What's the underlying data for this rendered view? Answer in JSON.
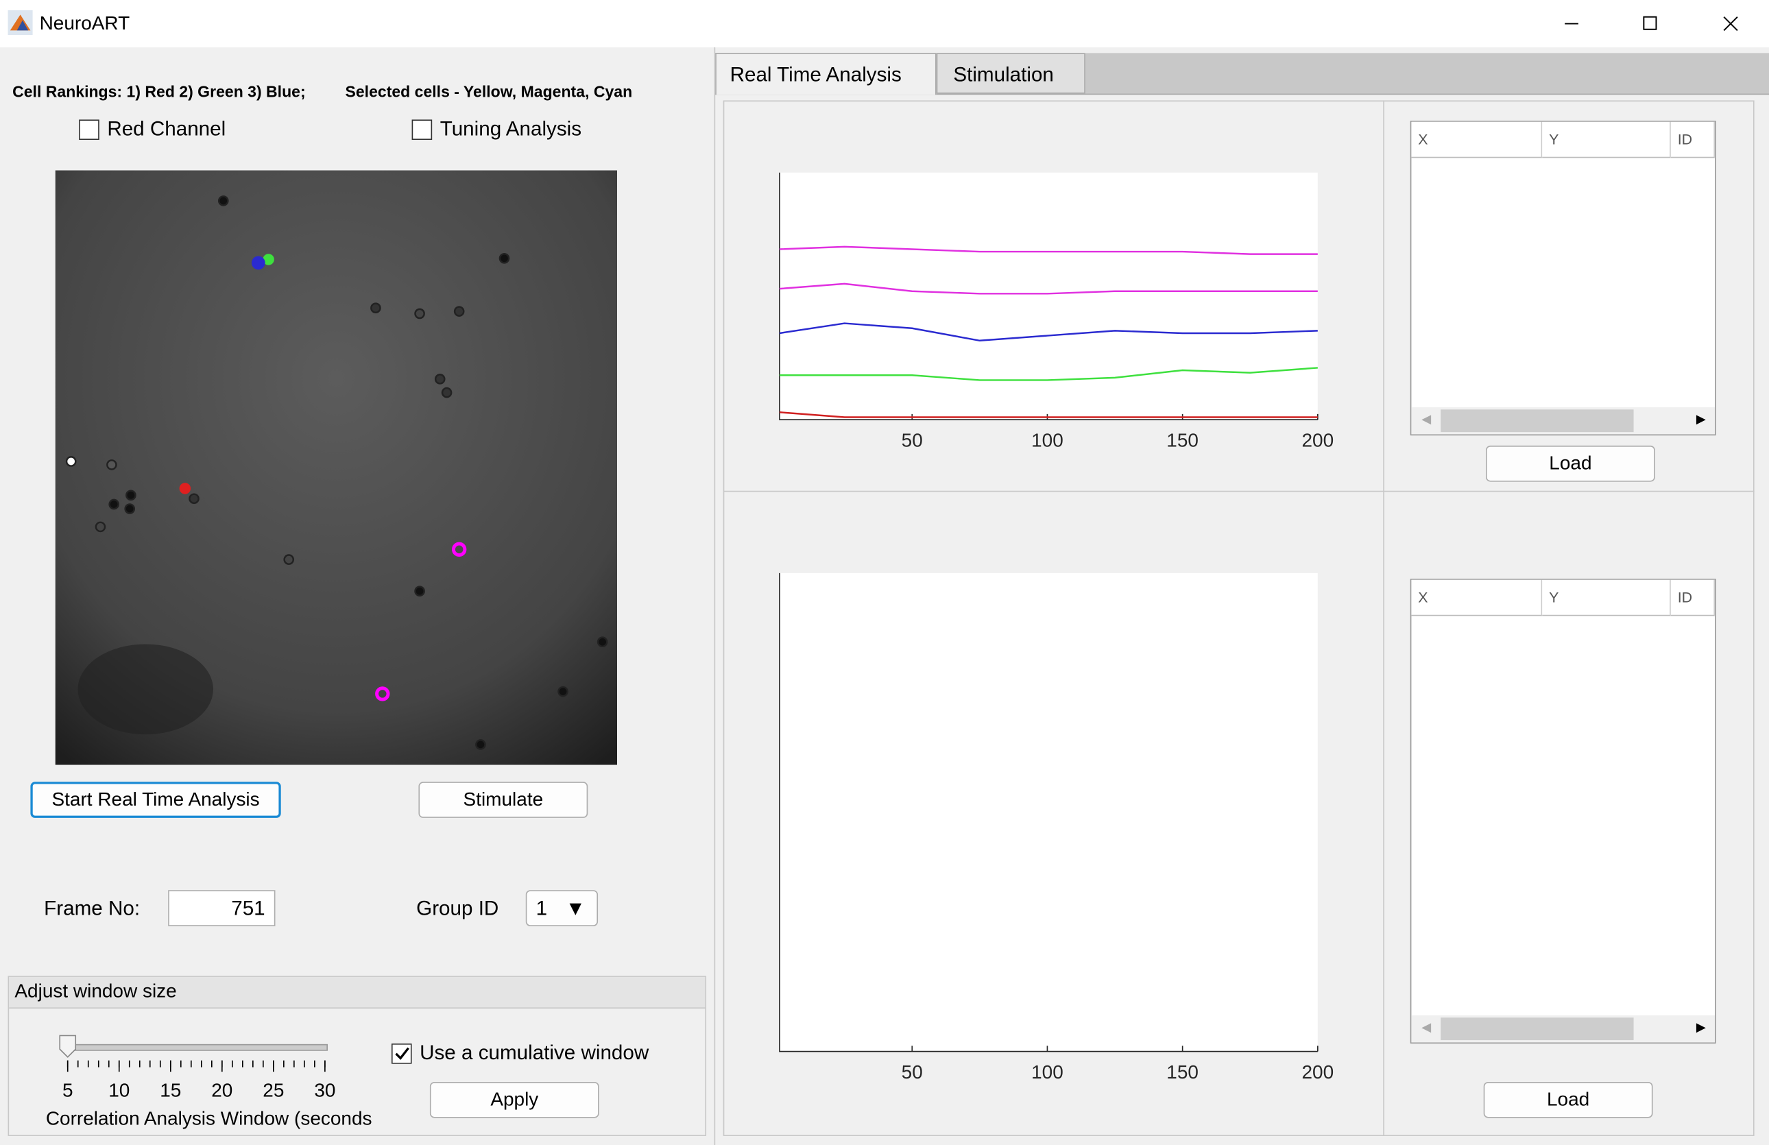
{
  "window": {
    "title": "NeuroART"
  },
  "left_panel": {
    "rankings_text": "Cell Rankings: 1) Red 2) Green 3) Blue;",
    "selected_text": "Selected cells - Yellow, Magenta, Cyan",
    "checkboxes": [
      {
        "label": "Red Channel",
        "checked": false
      },
      {
        "label": "Tuning Analysis",
        "checked": false
      }
    ],
    "start_button": "Start Real Time Analysis",
    "stimulate_button": "Stimulate",
    "frame_label": "Frame No:",
    "frame_value": 751,
    "group_label": "Group ID",
    "group_value": 1,
    "window_panel": {
      "title": "Adjust window size",
      "slider": {
        "ticks": [
          5,
          10,
          15,
          20,
          25,
          30
        ],
        "value": 5,
        "label": "Correlation Analysis Window (seconds)"
      },
      "checkbox": {
        "label": "Use a cumulative window",
        "checked": true
      },
      "apply_button": "Apply"
    }
  },
  "tabs": [
    "Real Time Analysis",
    "Stimulation"
  ],
  "plots": [
    {
      "xlim": [
        1,
        200
      ],
      "xticks": [
        50,
        100,
        150,
        200
      ],
      "ylim": [
        0,
        1
      ],
      "x": [
        1,
        25,
        50,
        75,
        100,
        125,
        150,
        175,
        200
      ],
      "series": [
        {
          "color": "#e030e0",
          "values": [
            0.69,
            0.7,
            0.69,
            0.68,
            0.68,
            0.68,
            0.68,
            0.67,
            0.67
          ]
        },
        {
          "color": "#e030e0",
          "values": [
            0.53,
            0.55,
            0.52,
            0.51,
            0.51,
            0.52,
            0.52,
            0.52,
            0.52
          ]
        },
        {
          "color": "#2a2ad0",
          "values": [
            0.35,
            0.39,
            0.37,
            0.32,
            0.34,
            0.36,
            0.35,
            0.35,
            0.36
          ]
        },
        {
          "color": "#3ee03e",
          "values": [
            0.18,
            0.18,
            0.18,
            0.16,
            0.16,
            0.17,
            0.2,
            0.19,
            0.21
          ]
        },
        {
          "color": "#d02020",
          "values": [
            0.03,
            0.01,
            0.01,
            0.01,
            0.01,
            0.01,
            0.01,
            0.01,
            0.01
          ]
        }
      ]
    },
    {
      "xlim": [
        1,
        200
      ],
      "xticks": [
        50,
        100,
        150,
        200
      ]
    }
  ],
  "tables": [
    {
      "columns": [
        "X",
        "Y",
        "ID"
      ],
      "button": "Load"
    },
    {
      "columns": [
        "X",
        "Y",
        "ID"
      ],
      "button": "Load"
    }
  ]
}
